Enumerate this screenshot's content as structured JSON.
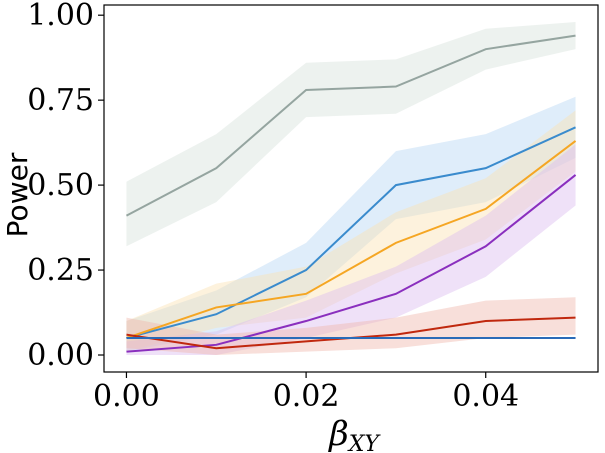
{
  "chart_data": {
    "type": "line",
    "title": "",
    "xlabel": "β",
    "xlabel_subscript": "XY",
    "ylabel": "Power",
    "x": [
      0.0,
      0.01,
      0.02,
      0.03,
      0.04,
      0.05
    ],
    "xlim": [
      -0.0025,
      0.0525
    ],
    "ylim": [
      -0.05,
      1.03
    ],
    "xticks": [
      0.0,
      0.02,
      0.04
    ],
    "xtick_labels": [
      "0.00",
      "0.02",
      "0.04"
    ],
    "yticks": [
      0.0,
      0.25,
      0.5,
      0.75,
      1.0
    ],
    "ytick_labels": [
      "0.00",
      "0.25",
      "0.50",
      "0.75",
      "1.00"
    ],
    "grid": false,
    "series": [
      {
        "name": "gray",
        "color": "#95a5a0",
        "fill": "#d6e2dc",
        "values": [
          0.41,
          0.55,
          0.78,
          0.79,
          0.9,
          0.94
        ],
        "lower": [
          0.32,
          0.45,
          0.7,
          0.71,
          0.84,
          0.9
        ],
        "upper": [
          0.51,
          0.65,
          0.86,
          0.87,
          0.96,
          0.98
        ]
      },
      {
        "name": "blue",
        "color": "#3a8bcd",
        "fill": "#b9d8f3",
        "values": [
          0.05,
          0.12,
          0.25,
          0.5,
          0.55,
          0.67
        ],
        "lower": [
          0.01,
          0.06,
          0.17,
          0.4,
          0.45,
          0.58
        ],
        "upper": [
          0.1,
          0.19,
          0.33,
          0.6,
          0.65,
          0.76
        ]
      },
      {
        "name": "orange",
        "color": "#f5a623",
        "fill": "#fbe3b3",
        "values": [
          0.05,
          0.14,
          0.18,
          0.33,
          0.43,
          0.63
        ],
        "lower": [
          0.01,
          0.08,
          0.11,
          0.24,
          0.34,
          0.54
        ],
        "upper": [
          0.1,
          0.21,
          0.26,
          0.42,
          0.52,
          0.72
        ]
      },
      {
        "name": "purple",
        "color": "#8a2fbe",
        "fill": "#dbbdf0",
        "values": [
          0.01,
          0.03,
          0.1,
          0.18,
          0.32,
          0.53
        ],
        "lower": [
          0.0,
          0.0,
          0.05,
          0.11,
          0.23,
          0.44
        ],
        "upper": [
          0.04,
          0.07,
          0.16,
          0.26,
          0.41,
          0.62
        ]
      },
      {
        "name": "red",
        "color": "#c0280e",
        "fill": "#f0b9ae",
        "values": [
          0.06,
          0.02,
          0.04,
          0.06,
          0.1,
          0.11
        ],
        "lower": [
          0.02,
          0.0,
          0.01,
          0.02,
          0.05,
          0.06
        ],
        "upper": [
          0.11,
          0.06,
          0.08,
          0.11,
          0.16,
          0.17
        ]
      },
      {
        "name": "dark-blue",
        "color": "#2a6bb8",
        "fill": "#b9d3ee",
        "values": [
          0.05,
          0.05,
          0.05,
          0.05,
          0.05,
          0.05
        ],
        "lower": [
          0.05,
          0.05,
          0.05,
          0.05,
          0.05,
          0.05
        ],
        "upper": [
          0.05,
          0.05,
          0.05,
          0.05,
          0.05,
          0.05
        ]
      }
    ]
  }
}
